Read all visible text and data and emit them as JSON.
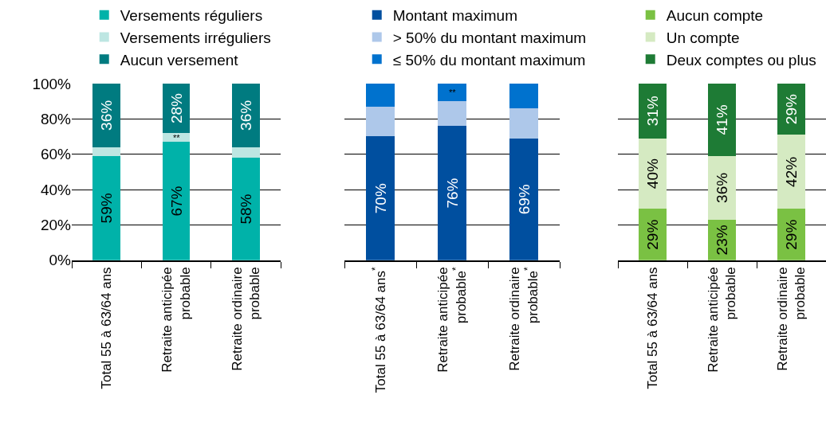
{
  "chart_data": [
    {
      "type": "bar",
      "stacked": true,
      "categories": [
        "Total 55 à 63/64 ans",
        "Retraite anticipée\nprobable",
        "Retraite ordinaire\nprobable"
      ],
      "series": [
        {
          "name": "Versements réguliers",
          "color": "#00b2a9",
          "values": [
            59,
            67,
            58
          ],
          "value_labels": [
            "59%",
            "67%",
            "58%"
          ]
        },
        {
          "name": "Versements irréguliers",
          "color": "#bde6e2",
          "values": [
            5,
            5,
            6
          ],
          "value_labels": [
            null,
            "**",
            null
          ]
        },
        {
          "name": "Aucun versement",
          "color": "#007b80",
          "values": [
            36,
            28,
            36
          ],
          "value_labels": [
            "36%",
            "28%",
            "36%"
          ]
        }
      ],
      "ylim": [
        0,
        100
      ],
      "yticks": [
        {
          "value": 0,
          "label": "0%"
        },
        {
          "value": 20,
          "label": "20%"
        },
        {
          "value": 40,
          "label": "40%"
        },
        {
          "value": 60,
          "label": "60%"
        },
        {
          "value": 80,
          "label": "80%"
        },
        {
          "value": 100,
          "label": "100%"
        }
      ],
      "grid": "y",
      "legend": "top"
    },
    {
      "type": "bar",
      "stacked": true,
      "categories": [
        "Total 55 à 63/64 ans$^{*}$",
        "Retraite anticipée\nprobable$^{*}$",
        "Retraite ordinaire\nprobable$^{*}$"
      ],
      "series": [
        {
          "name": "Montant maximum",
          "color": "#004f9f",
          "values": [
            70,
            76,
            69
          ],
          "value_labels": [
            "70%",
            "76%",
            "69%"
          ]
        },
        {
          "name": "> 50% du montant maximum",
          "color": "#aec8ea",
          "values": [
            17,
            14,
            17
          ]
        },
        {
          "name": "≤ 50% du montant maximum",
          "color": "#0072ce",
          "values": [
            13,
            10,
            14
          ],
          "value_labels": [
            null,
            "**",
            null
          ]
        }
      ],
      "ylim": [
        0,
        100
      ],
      "yticks": [
        {
          "value": 0,
          "label": null
        },
        {
          "value": 20,
          "label": null
        },
        {
          "value": 40,
          "label": null
        },
        {
          "value": 60,
          "label": null
        },
        {
          "value": 80,
          "label": null
        },
        {
          "value": 100,
          "label": null
        }
      ],
      "tick_labels": "x",
      "grid": "y",
      "legend": "top"
    },
    {
      "type": "bar",
      "stacked": true,
      "categories": [
        "Total 55 à 63/64 ans",
        "Retraite anticipée\nprobable",
        "Retraite ordinaire\nprobable"
      ],
      "series": [
        {
          "name": "Aucun compte",
          "color": "#7ac143",
          "values": [
            29,
            23,
            29
          ],
          "value_labels": [
            "29%",
            "23%",
            "29%"
          ]
        },
        {
          "name": "Un compte",
          "color": "#d5eac2",
          "values": [
            40,
            36,
            42
          ],
          "value_labels": [
            "40%",
            "36%",
            "42%"
          ]
        },
        {
          "name": "Deux comptes ou plus",
          "color": "#1e7b35",
          "values": [
            31,
            41,
            29
          ],
          "value_labels": [
            "31%",
            "41%",
            "29%"
          ]
        }
      ],
      "ylim": [
        0,
        100
      ],
      "yticks": [
        {
          "value": 0,
          "label": null
        },
        {
          "value": 20,
          "label": null
        },
        {
          "value": 40,
          "label": null
        },
        {
          "value": 60,
          "label": null
        },
        {
          "value": 80,
          "label": null
        },
        {
          "value": 100,
          "label": null
        }
      ],
      "tick_labels": "x",
      "grid": "y",
      "legend": "top"
    }
  ]
}
